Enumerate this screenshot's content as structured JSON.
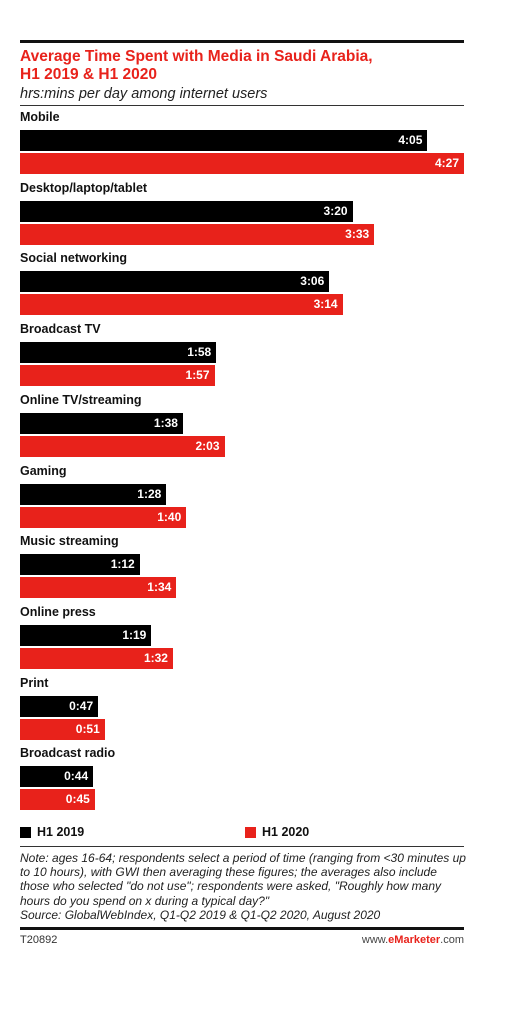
{
  "header": {
    "title": "Average Time Spent with Media in Saudi Arabia,\nH1 2019 & H1 2020",
    "subtitle": "hrs:mins per day among internet users"
  },
  "chart_data": {
    "type": "bar",
    "orientation": "horizontal",
    "title": "Average Time Spent with Media in Saudi Arabia, H1 2019 & H1 2020",
    "subtitle": "hrs:mins per day among internet users",
    "categories": [
      "Mobile",
      "Desktop/laptop/tablet",
      "Social networking",
      "Broadcast TV",
      "Online TV/streaming",
      "Gaming",
      "Music streaming",
      "Online press",
      "Print",
      "Broadcast radio"
    ],
    "series": [
      {
        "name": "H1 2019",
        "color": "#000000",
        "labels": [
          "4:05",
          "3:20",
          "3:06",
          "1:58",
          "1:38",
          "1:28",
          "1:12",
          "1:19",
          "0:47",
          "0:44"
        ],
        "values_minutes": [
          245,
          200,
          186,
          118,
          98,
          88,
          72,
          79,
          47,
          44
        ]
      },
      {
        "name": "H1 2020",
        "color": "#e8221b",
        "labels": [
          "4:27",
          "3:33",
          "3:14",
          "1:57",
          "2:03",
          "1:40",
          "1:34",
          "1:32",
          "0:51",
          "0:45"
        ],
        "values_minutes": [
          267,
          213,
          194,
          117,
          123,
          100,
          94,
          92,
          51,
          45
        ]
      }
    ],
    "xlim": [
      0,
      267
    ],
    "grid": false,
    "legend": "bottom"
  },
  "legend": {
    "items": [
      {
        "label": "H1 2019",
        "color": "#000000"
      },
      {
        "label": "H1 2020",
        "color": "#e8221b"
      }
    ]
  },
  "note": "Note: ages 16-64; respondents select a period of time (ranging from <30 minutes up to 10 hours), with GWI then averaging these figures; the averages also include those who selected \"do not use\"; respondents were asked, \"Roughly how many hours do you spend on x during a typical day?\"",
  "source": "Source: GlobalWebIndex, Q1-Q2 2019 & Q1-Q2 2020, August 2020",
  "footer": {
    "code": "T20892",
    "brand_prefix": "www.",
    "brand_name": "eMarketer",
    "brand_suffix": ".com"
  }
}
